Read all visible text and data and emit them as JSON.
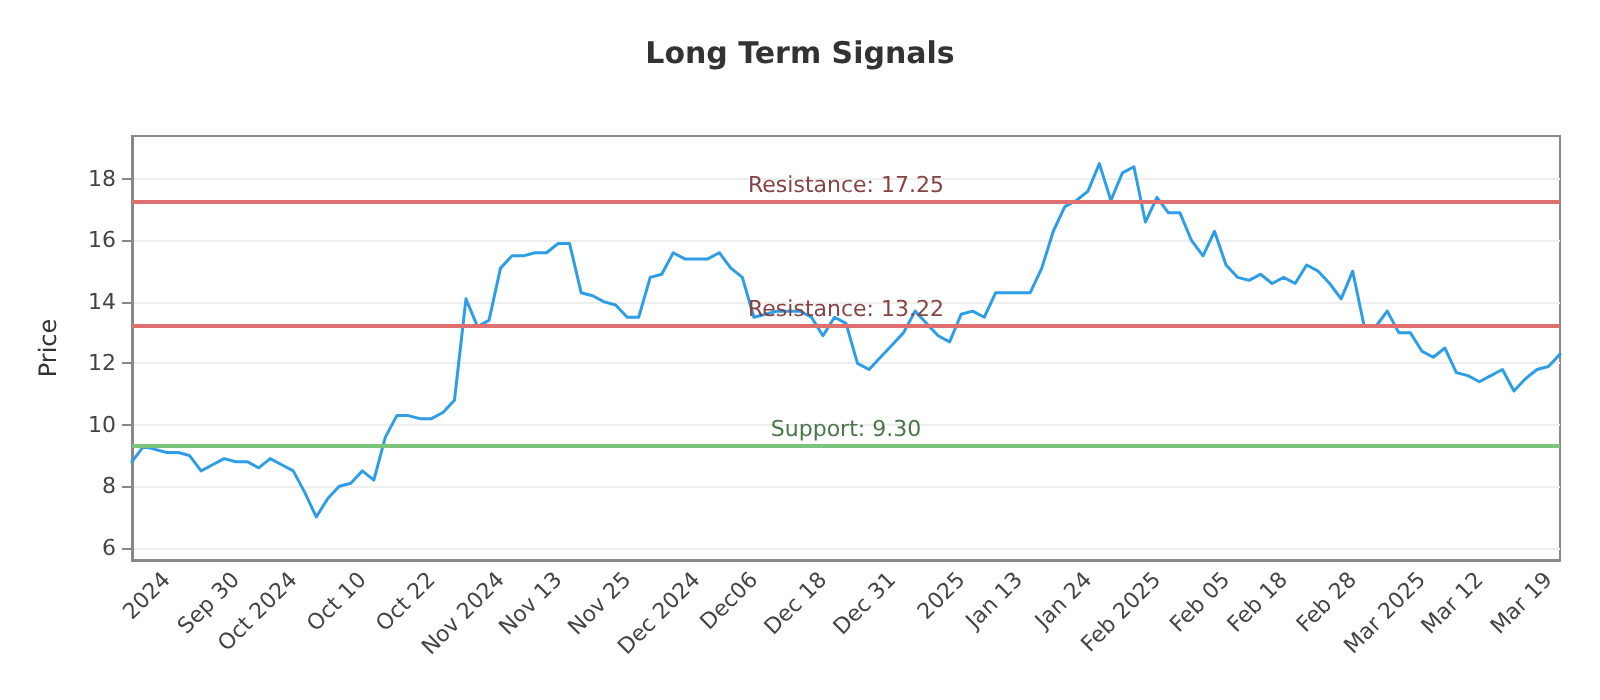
{
  "chart_data": {
    "type": "line",
    "title": "Long Term Signals",
    "ylabel": "Price",
    "categories": [
      null,
      null,
      null,
      "2024",
      null,
      null,
      null,
      null,
      null,
      "Sep 30",
      null,
      null,
      null,
      null,
      "Oct 2024",
      null,
      null,
      null,
      null,
      null,
      "Oct 10",
      null,
      null,
      null,
      null,
      null,
      "Oct 22",
      null,
      null,
      null,
      null,
      null,
      "Nov 2024",
      null,
      null,
      null,
      null,
      "Nov 13",
      null,
      null,
      null,
      null,
      null,
      "Nov 25",
      null,
      null,
      null,
      null,
      null,
      "Dec 2024",
      null,
      null,
      null,
      null,
      "Dec06",
      null,
      null,
      null,
      null,
      null,
      "Dec 18",
      null,
      null,
      null,
      null,
      null,
      "Dec 31",
      null,
      null,
      null,
      null,
      null,
      "2025",
      null,
      null,
      null,
      null,
      "Jan 13",
      null,
      null,
      null,
      null,
      null,
      "Jan 24",
      null,
      null,
      null,
      null,
      null,
      "Feb 2025",
      null,
      null,
      null,
      null,
      null,
      "Feb 05",
      null,
      null,
      null,
      null,
      "Feb 18",
      null,
      null,
      null,
      null,
      null,
      "Feb 28",
      null,
      null,
      null,
      null,
      null,
      "Mar 2025",
      null,
      null,
      null,
      null,
      "Mar 12",
      null,
      null,
      null,
      null,
      null,
      "Mar 19",
      null
    ],
    "series": [
      {
        "color": "#2d9ee6",
        "values": [
          8.8,
          9.3,
          9.2,
          9.1,
          9.1,
          9.0,
          8.5,
          8.7,
          8.9,
          8.8,
          8.8,
          8.6,
          8.9,
          8.7,
          8.5,
          7.8,
          7.0,
          7.6,
          8.0,
          8.1,
          8.5,
          8.2,
          9.6,
          10.3,
          10.3,
          10.2,
          10.2,
          10.4,
          10.8,
          14.1,
          13.2,
          13.4,
          15.1,
          15.5,
          15.5,
          15.6,
          15.6,
          15.9,
          15.9,
          14.3,
          14.2,
          14.0,
          13.9,
          13.5,
          13.5,
          14.8,
          14.9,
          15.6,
          15.4,
          15.4,
          15.4,
          15.6,
          15.1,
          14.8,
          13.5,
          13.6,
          13.7,
          13.7,
          13.7,
          13.5,
          12.9,
          13.5,
          13.3,
          12.0,
          11.8,
          12.2,
          12.6,
          13.0,
          13.7,
          13.3,
          12.9,
          12.7,
          13.6,
          13.7,
          13.5,
          14.3,
          14.3,
          14.3,
          14.3,
          15.1,
          16.3,
          17.1,
          17.3,
          17.6,
          18.5,
          17.3,
          18.2,
          18.4,
          16.6,
          17.4,
          16.9,
          16.9,
          16.0,
          15.5,
          16.3,
          15.2,
          14.8,
          14.7,
          14.9,
          14.6,
          14.8,
          14.6,
          15.2,
          15.0,
          14.6,
          14.1,
          15.0,
          13.2,
          13.2,
          13.7,
          13.0,
          13.0,
          12.4,
          12.2,
          12.5,
          11.7,
          11.6,
          11.4,
          11.6,
          11.8,
          11.1,
          11.5,
          11.8,
          11.9,
          12.3
        ]
      }
    ],
    "ylim": [
      5.6,
      19.4
    ],
    "yticks": [
      6,
      8,
      10,
      12,
      14,
      16,
      18
    ],
    "grid": "y",
    "marker": "none",
    "line_style": "solid",
    "ref_lines": [
      {
        "axis": "y",
        "value": 17.25,
        "label": "Resistance: 17.25",
        "color": "#e07070"
      },
      {
        "axis": "y",
        "value": 13.22,
        "label": "Resistance: 13.22",
        "color": "#e07070"
      },
      {
        "axis": "y",
        "value": 9.3,
        "label": "Support: 9.30",
        "color": "#7cc47c"
      }
    ]
  }
}
